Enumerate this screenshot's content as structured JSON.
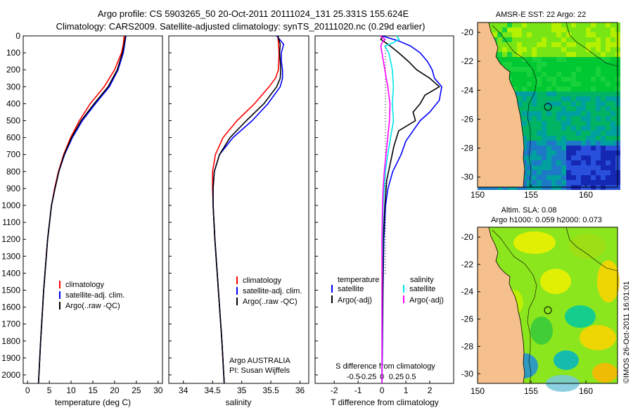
{
  "header": {
    "line1": "Argo profile: CS 5903265_50 20-Oct-2011 20111024_131 25.331S 155.624E",
    "line2": "Climatology: CARS2009. Satellite-adjusted climatology: synTS_20111020.nc (0.29d earlier)"
  },
  "colors": {
    "climatology": "#ff0000",
    "satellite": "#0000ff",
    "argo": "#000000",
    "salinity_sat": "#00e5ee",
    "salinity_argo": "#ff00ff",
    "land": "#f5c08c"
  },
  "chart_data": [
    {
      "type": "line",
      "id": "temperature",
      "xlabel": "temperature (deg C)",
      "xlim": [
        -1,
        31
      ],
      "xticks": [
        "0",
        "5",
        "10",
        "15",
        "20",
        "25",
        "30"
      ],
      "ylim": [
        0,
        2050
      ],
      "yticks": [
        "0",
        "100",
        "200",
        "300",
        "400",
        "500",
        "600",
        "700",
        "800",
        "900",
        "1000",
        "1100",
        "1200",
        "1300",
        "1400",
        "1500",
        "1600",
        "1700",
        "1800",
        "1900",
        "2000"
      ],
      "legend": [
        "climatology",
        "satellite-adj. clim.",
        "Argo(..raw -QC)"
      ],
      "series": [
        {
          "name": "climatology",
          "depth": [
            0,
            50,
            100,
            200,
            300,
            400,
            500,
            600,
            700,
            800,
            900,
            1000,
            1200,
            1500,
            1800,
            2050
          ],
          "values": [
            22.2,
            22.0,
            21.6,
            20.0,
            17.6,
            14.4,
            11.9,
            9.9,
            8.3,
            7.1,
            6.2,
            5.5,
            4.6,
            3.7,
            3.0,
            2.5
          ]
        },
        {
          "name": "satellite-adj. clim.",
          "depth": [
            0,
            50,
            100,
            200,
            300,
            400,
            500,
            600,
            700,
            800,
            900,
            1000,
            1200,
            1500,
            1800,
            2050
          ],
          "values": [
            22.6,
            22.3,
            22.0,
            20.8,
            18.8,
            15.6,
            12.6,
            10.3,
            8.5,
            7.2,
            6.3,
            5.5,
            4.6,
            3.7,
            3.0,
            2.5
          ]
        },
        {
          "name": "Argo(..raw -QC)",
          "depth": [
            0,
            50,
            100,
            200,
            300,
            400,
            500,
            600,
            700,
            800,
            900,
            1000,
            1200,
            1500,
            1800,
            2050
          ],
          "values": [
            22.5,
            22.2,
            21.8,
            20.6,
            18.5,
            15.3,
            12.3,
            10.1,
            8.4,
            7.2,
            6.3,
            5.5,
            4.6,
            3.7,
            3.0,
            2.5
          ]
        }
      ]
    },
    {
      "type": "line",
      "id": "salinity",
      "xlabel": "salinity",
      "xlim": [
        33.75,
        36.15
      ],
      "xticks": [
        "34",
        "34.5",
        "35",
        "35.5",
        "36"
      ],
      "ylim": [
        0,
        2050
      ],
      "legend": [
        "climatology",
        "satellite-adj. clim.",
        "Argo(..raw -QC)"
      ],
      "annotation": [
        "Argo AUSTRALIA",
        "PI: Susan Wijffels"
      ],
      "series": [
        {
          "name": "climatology",
          "depth": [
            0,
            50,
            100,
            200,
            250,
            300,
            400,
            500,
            600,
            700,
            800,
            900,
            1000,
            1200,
            1500,
            1800,
            2050
          ],
          "values": [
            35.62,
            35.63,
            35.64,
            35.63,
            35.58,
            35.47,
            35.22,
            34.92,
            34.68,
            34.55,
            34.5,
            34.5,
            34.51,
            34.54,
            34.6,
            34.66,
            34.7
          ]
        },
        {
          "name": "satellite-adj. clim.",
          "depth": [
            0,
            50,
            100,
            150,
            200,
            250,
            300,
            400,
            500,
            600,
            700,
            800,
            900,
            1000,
            1200,
            1500,
            1800,
            2050
          ],
          "values": [
            35.6,
            35.72,
            35.68,
            35.68,
            35.7,
            35.7,
            35.66,
            35.45,
            35.18,
            34.85,
            34.62,
            34.53,
            34.51,
            34.51,
            34.54,
            34.6,
            34.66,
            34.7
          ]
        },
        {
          "name": "Argo(..raw -QC)",
          "depth": [
            0,
            50,
            100,
            150,
            200,
            250,
            300,
            400,
            500,
            600,
            700,
            800,
            900,
            1000,
            1200,
            1500,
            1800,
            2050
          ],
          "values": [
            35.62,
            35.66,
            35.65,
            35.66,
            35.67,
            35.66,
            35.6,
            35.38,
            35.08,
            34.8,
            34.62,
            34.53,
            34.51,
            34.51,
            34.54,
            34.6,
            34.66,
            34.7
          ]
        }
      ]
    },
    {
      "type": "line",
      "id": "difference",
      "xlabel": "T difference from climatology",
      "xlabel2": "S difference from climatology",
      "xlim": [
        -2.8,
        3.0
      ],
      "xticks": [
        "-2",
        "-1",
        "0",
        "1",
        "2"
      ],
      "xticks_s": [
        "-0.5",
        "-0.25",
        "0",
        "0.25",
        "0.5"
      ],
      "ylim": [
        0,
        2050
      ],
      "legend_left_title": "temperature",
      "legend_right_title": "salinity",
      "legend": [
        "satellite",
        "Argo(-adj)",
        "satellite",
        "Argo(-adj)"
      ],
      "series": [
        {
          "name": "satellite",
          "depth": [
            0,
            30,
            60,
            100,
            150,
            200,
            250,
            300,
            380,
            450,
            500,
            560,
            620,
            700,
            800,
            900,
            1000,
            1200,
            1500,
            1800,
            2050
          ],
          "values": [
            0.0,
            0.7,
            1.2,
            1.6,
            1.9,
            2.1,
            2.2,
            2.5,
            2.4,
            2.0,
            1.6,
            1.3,
            1.0,
            0.8,
            0.45,
            0.25,
            0.15,
            0.08,
            0.04,
            0.02,
            0.0
          ]
        },
        {
          "name": "Argo(-adj)",
          "depth": [
            0,
            20,
            60,
            100,
            150,
            200,
            250,
            300,
            350,
            400,
            450,
            500,
            560,
            650,
            750,
            850,
            1000,
            1200,
            1500,
            1800,
            2050
          ],
          "values": [
            0.05,
            -0.05,
            0.35,
            0.7,
            1.1,
            1.45,
            2.0,
            2.4,
            1.8,
            1.6,
            1.3,
            1.4,
            0.7,
            0.5,
            0.35,
            0.2,
            0.12,
            0.06,
            0.03,
            0.01,
            0.0
          ]
        },
        {
          "name": "satellite",
          "depth": [
            0,
            20,
            40,
            60,
            100,
            200,
            300,
            400,
            500,
            600,
            700,
            800,
            900,
            1000,
            1200,
            1500,
            1800,
            2050
          ],
          "values": [
            0.25,
            0.3,
            0.2,
            0.05,
            0.12,
            0.18,
            0.2,
            0.18,
            0.2,
            0.15,
            0.1,
            0.06,
            0.04,
            0.02,
            0.01,
            0.0,
            0.0,
            0.0
          ]
        },
        {
          "name": "Argo(-adj)",
          "depth": [
            0,
            20,
            40,
            60,
            100,
            200,
            300,
            400,
            500,
            600,
            700,
            800,
            900,
            1000,
            1200,
            1500,
            1800,
            2050
          ],
          "values": [
            -0.03,
            0.05,
            0.0,
            -0.02,
            0.0,
            0.05,
            0.1,
            0.14,
            0.13,
            0.1,
            0.07,
            0.04,
            0.02,
            0.01,
            0.0,
            0.0,
            0.0,
            0.0
          ]
        }
      ]
    },
    {
      "type": "heatmap",
      "id": "sst-map",
      "title": "AMSR-E SST: 22 Argo: 22",
      "xticks": [
        "150",
        "155",
        "160"
      ],
      "yticks": [
        "-20",
        "-22",
        "-24",
        "-26",
        "-28",
        "-30"
      ]
    },
    {
      "type": "heatmap",
      "id": "sla-map",
      "title_line1": "Altim. SLA: 0.08",
      "title_line2": "Argo h1000: 0.059 h2000: 0.073",
      "xticks": [
        "150",
        "155",
        "160"
      ],
      "yticks": [
        "-20",
        "-22",
        "-24",
        "-26",
        "-28",
        "-30"
      ]
    }
  ],
  "footer": {
    "stamp": "©IMOS 26-Oct-2011 16:01:01"
  }
}
